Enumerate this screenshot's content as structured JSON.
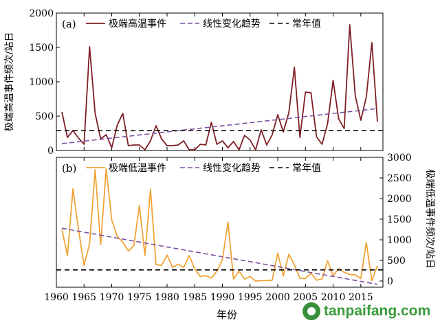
{
  "xlabel": "年份",
  "x_ticks": [
    1960,
    1965,
    1970,
    1975,
    1980,
    1985,
    1990,
    1995,
    2000,
    2005,
    2010,
    2015
  ],
  "watermark": {
    "text": "tanpaifang.com"
  },
  "colors": {
    "heat": "#7d1f25",
    "cold": "#f0a336",
    "trend": "#7b4fa3",
    "mean": "#000000"
  },
  "chart_data": [
    {
      "type": "line",
      "panel_label": "(a)",
      "ylabel": "极端高温事件频次/站日",
      "ylim": [
        0,
        2000
      ],
      "y_ticks": [
        0,
        500,
        1000,
        1500,
        2000
      ],
      "xlim": [
        1960,
        2019
      ],
      "legend": {
        "placement": "top",
        "entries": [
          "极端高温事件",
          "线性变化趋势",
          "常年值"
        ]
      },
      "series": [
        {
          "name": "极端高温事件",
          "x": [
            1961,
            1962,
            1963,
            1964,
            1965,
            1966,
            1967,
            1968,
            1969,
            1970,
            1971,
            1972,
            1973,
            1974,
            1975,
            1976,
            1977,
            1978,
            1979,
            1980,
            1981,
            1982,
            1983,
            1984,
            1985,
            1986,
            1987,
            1988,
            1989,
            1990,
            1991,
            1992,
            1993,
            1994,
            1995,
            1996,
            1997,
            1998,
            1999,
            2000,
            2001,
            2002,
            2003,
            2004,
            2005,
            2006,
            2007,
            2008,
            2009,
            2010,
            2011,
            2012,
            2013,
            2014,
            2015,
            2016,
            2017,
            2018
          ],
          "y": [
            560,
            190,
            290,
            180,
            90,
            1510,
            540,
            170,
            230,
            40,
            370,
            540,
            70,
            80,
            80,
            10,
            140,
            360,
            170,
            70,
            70,
            80,
            140,
            10,
            10,
            90,
            80,
            410,
            90,
            140,
            40,
            130,
            10,
            220,
            150,
            10,
            300,
            80,
            230,
            520,
            270,
            550,
            1210,
            190,
            850,
            840,
            200,
            90,
            390,
            1020,
            460,
            320,
            1830,
            800,
            440,
            780,
            1570,
            420
          ]
        },
        {
          "name": "线性变化趋势",
          "x": [
            1961,
            2018
          ],
          "y": [
            100,
            610
          ]
        },
        {
          "name": "常年值",
          "x": [
            1960,
            2019
          ],
          "y": [
            290,
            290
          ]
        }
      ]
    },
    {
      "type": "line",
      "panel_label": "(b)",
      "ylabel": "极端低温事件频次/站日",
      "ylim": [
        -150,
        3000
      ],
      "y_ticks": [
        0,
        500,
        1000,
        1500,
        2000,
        2500,
        3000
      ],
      "xlim": [
        1960,
        2019
      ],
      "legend": {
        "placement": "top",
        "entries": [
          "极端低温事件",
          "线性变化趋势",
          "常年值"
        ]
      },
      "series": [
        {
          "name": "极端低温事件",
          "x": [
            1961,
            1962,
            1963,
            1964,
            1965,
            1966,
            1967,
            1968,
            1969,
            1970,
            1971,
            1972,
            1973,
            1974,
            1975,
            1976,
            1977,
            1978,
            1979,
            1980,
            1981,
            1982,
            1983,
            1984,
            1985,
            1986,
            1987,
            1988,
            1989,
            1990,
            1991,
            1992,
            1993,
            1994,
            1995,
            1996,
            1997,
            1998,
            1999,
            2000,
            2001,
            2002,
            2003,
            2004,
            2005,
            2006,
            2007,
            2008,
            2009,
            2010,
            2011,
            2012,
            2013,
            2014,
            2015,
            2016,
            2017,
            2018
          ],
          "y": [
            1250,
            620,
            2240,
            1250,
            380,
            900,
            2700,
            880,
            2720,
            1480,
            1080,
            940,
            730,
            860,
            1830,
            620,
            2230,
            400,
            380,
            630,
            330,
            410,
            330,
            620,
            290,
            110,
            130,
            70,
            240,
            520,
            1430,
            50,
            240,
            50,
            110,
            0,
            10,
            10,
            20,
            680,
            120,
            650,
            390,
            70,
            60,
            190,
            20,
            50,
            490,
            130,
            300,
            210,
            160,
            150,
            60,
            930,
            10,
            370
          ]
        },
        {
          "name": "线性变化趋势",
          "x": [
            1961,
            2018
          ],
          "y": [
            1280,
            -80
          ]
        },
        {
          "name": "常年值",
          "x": [
            1960,
            2019
          ],
          "y": [
            270,
            270
          ]
        }
      ]
    }
  ]
}
